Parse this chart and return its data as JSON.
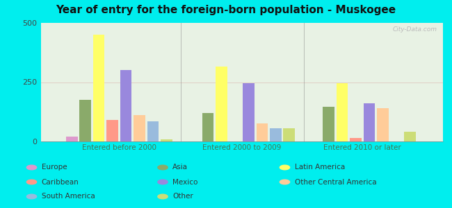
{
  "title": "Year of entry for the foreign-born population - Muskogee",
  "groups": [
    "Entered before 2000",
    "Entered 2000 to 2009",
    "Entered 2010 or later"
  ],
  "categories": [
    "Europe",
    "Asia",
    "Latin America",
    "Caribbean",
    "Mexico",
    "Other Central America",
    "South America",
    "Other"
  ],
  "values": [
    [
      20,
      175,
      450,
      90,
      300,
      110,
      85,
      10
    ],
    [
      0,
      120,
      315,
      0,
      245,
      75,
      55,
      55
    ],
    [
      0,
      145,
      245,
      15,
      160,
      140,
      0,
      40
    ]
  ],
  "colors": [
    "#dd99cc",
    "#8aaa6a",
    "#ffff66",
    "#ff9988",
    "#9988dd",
    "#ffcc99",
    "#99bbdd",
    "#ccdd77"
  ],
  "ylim": [
    0,
    500
  ],
  "yticks": [
    0,
    250,
    500
  ],
  "bg_color": "#00eeee",
  "plot_bg": "#e8f2e4",
  "watermark": "City-Data.com",
  "bar_width": 0.032,
  "legend_order": [
    0,
    1,
    2,
    3,
    4,
    5,
    6,
    7
  ],
  "legend_cols": 3
}
